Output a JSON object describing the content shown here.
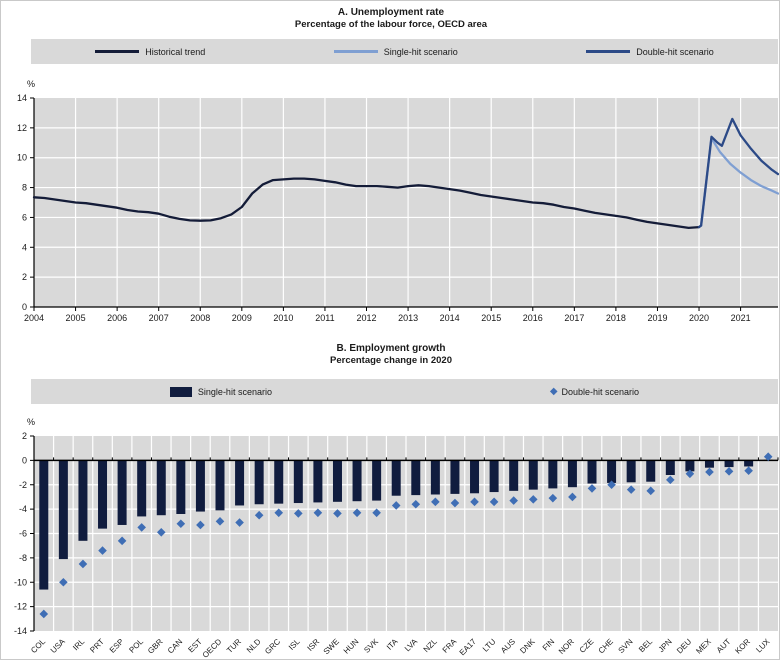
{
  "chart_data": [
    {
      "type": "line",
      "title": "A. Unemployment rate",
      "subtitle": "Percentage of the labour force, OECD area",
      "ylabel": "%",
      "ylim": [
        0,
        14
      ],
      "yticks": [
        0,
        2,
        4,
        6,
        8,
        10,
        12,
        14
      ],
      "xlim": [
        2004,
        2021.9
      ],
      "xticks": [
        2004,
        2005,
        2006,
        2007,
        2008,
        2009,
        2010,
        2011,
        2012,
        2013,
        2014,
        2015,
        2016,
        2017,
        2018,
        2019,
        2020,
        2021
      ],
      "grid": true,
      "plot_bg": "#d9d9d9",
      "grid_color": "#ffffff",
      "legend_position": "top",
      "series": [
        {
          "name": "Historical trend",
          "color": "#141c38",
          "z": 1,
          "points": [
            [
              2004,
              7.35
            ],
            [
              2004.25,
              7.3
            ],
            [
              2004.5,
              7.2
            ],
            [
              2004.75,
              7.1
            ],
            [
              2005,
              7.0
            ],
            [
              2005.25,
              6.95
            ],
            [
              2005.5,
              6.85
            ],
            [
              2005.75,
              6.75
            ],
            [
              2006,
              6.65
            ],
            [
              2006.25,
              6.5
            ],
            [
              2006.5,
              6.4
            ],
            [
              2006.75,
              6.35
            ],
            [
              2007,
              6.25
            ],
            [
              2007.25,
              6.05
            ],
            [
              2007.5,
              5.9
            ],
            [
              2007.75,
              5.8
            ],
            [
              2008,
              5.78
            ],
            [
              2008.25,
              5.8
            ],
            [
              2008.5,
              5.95
            ],
            [
              2008.75,
              6.2
            ],
            [
              2009,
              6.7
            ],
            [
              2009.25,
              7.6
            ],
            [
              2009.5,
              8.2
            ],
            [
              2009.75,
              8.5
            ],
            [
              2010,
              8.55
            ],
            [
              2010.25,
              8.6
            ],
            [
              2010.5,
              8.6
            ],
            [
              2010.75,
              8.55
            ],
            [
              2011,
              8.45
            ],
            [
              2011.25,
              8.35
            ],
            [
              2011.5,
              8.2
            ],
            [
              2011.75,
              8.1
            ],
            [
              2012,
              8.1
            ],
            [
              2012.25,
              8.1
            ],
            [
              2012.5,
              8.05
            ],
            [
              2012.75,
              8.0
            ],
            [
              2013,
              8.1
            ],
            [
              2013.25,
              8.15
            ],
            [
              2013.5,
              8.1
            ],
            [
              2013.75,
              8.0
            ],
            [
              2014,
              7.9
            ],
            [
              2014.25,
              7.8
            ],
            [
              2014.5,
              7.65
            ],
            [
              2014.75,
              7.5
            ],
            [
              2015,
              7.4
            ],
            [
              2015.25,
              7.3
            ],
            [
              2015.5,
              7.2
            ],
            [
              2015.75,
              7.1
            ],
            [
              2016,
              7.0
            ],
            [
              2016.25,
              6.95
            ],
            [
              2016.5,
              6.85
            ],
            [
              2016.75,
              6.7
            ],
            [
              2017,
              6.6
            ],
            [
              2017.25,
              6.45
            ],
            [
              2017.5,
              6.3
            ],
            [
              2017.75,
              6.2
            ],
            [
              2018,
              6.1
            ],
            [
              2018.25,
              6.0
            ],
            [
              2018.5,
              5.85
            ],
            [
              2018.75,
              5.7
            ],
            [
              2019,
              5.6
            ],
            [
              2019.25,
              5.5
            ],
            [
              2019.5,
              5.4
            ],
            [
              2019.75,
              5.3
            ],
            [
              2020,
              5.35
            ]
          ]
        },
        {
          "name": "Single-hit scenario",
          "color": "#7f9fd2",
          "z": 0,
          "points": [
            [
              2020,
              5.35
            ],
            [
              2020.05,
              5.45
            ],
            [
              2020.3,
              11.3
            ],
            [
              2020.5,
              10.4
            ],
            [
              2020.75,
              9.6
            ],
            [
              2021,
              9.0
            ],
            [
              2021.25,
              8.5
            ],
            [
              2021.5,
              8.1
            ],
            [
              2021.75,
              7.8
            ],
            [
              2021.9,
              7.6
            ]
          ]
        },
        {
          "name": "Double-hit scenario",
          "color": "#2c4a87",
          "z": 2,
          "points": [
            [
              2020,
              5.35
            ],
            [
              2020.05,
              5.45
            ],
            [
              2020.3,
              11.4
            ],
            [
              2020.45,
              11.0
            ],
            [
              2020.55,
              10.8
            ],
            [
              2020.8,
              12.6
            ],
            [
              2021,
              11.5
            ],
            [
              2021.25,
              10.6
            ],
            [
              2021.5,
              9.8
            ],
            [
              2021.75,
              9.2
            ],
            [
              2021.9,
              8.9
            ]
          ]
        }
      ]
    },
    {
      "type": "bar",
      "title": "B. Employment growth",
      "subtitle": "Percentage change in 2020",
      "ylabel": "%",
      "ylim": [
        -14,
        2
      ],
      "yticks": [
        2,
        0,
        -2,
        -4,
        -6,
        -8,
        -10,
        -12,
        -14
      ],
      "grid": true,
      "plot_bg": "#d9d9d9",
      "grid_color": "#ffffff",
      "legend_position": "top",
      "categories": [
        "COL",
        "USA",
        "IRL",
        "PRT",
        "ESP",
        "POL",
        "GBR",
        "CAN",
        "EST",
        "OECD",
        "TUR",
        "NLD",
        "GRC",
        "ISL",
        "ISR",
        "SWE",
        "HUN",
        "SVK",
        "ITA",
        "LVA",
        "NZL",
        "FRA",
        "EA17",
        "LTU",
        "AUS",
        "DNK",
        "FIN",
        "NOR",
        "CZE",
        "CHE",
        "SVN",
        "BEL",
        "JPN",
        "DEU",
        "MEX",
        "AUT",
        "KOR",
        "LUX"
      ],
      "series": [
        {
          "name": "Single-hit scenario",
          "mark": "bar",
          "color": "#101c3e",
          "values": [
            -10.6,
            -8.1,
            -6.6,
            -5.6,
            -5.3,
            -4.6,
            -4.5,
            -4.4,
            -4.2,
            -4.1,
            -3.7,
            -3.6,
            -3.55,
            -3.5,
            -3.45,
            -3.4,
            -3.35,
            -3.3,
            -2.9,
            -2.85,
            -2.8,
            -2.75,
            -2.7,
            -2.6,
            -2.5,
            -2.4,
            -2.3,
            -2.2,
            -1.9,
            -1.85,
            -1.8,
            -1.75,
            -1.2,
            -0.9,
            -0.6,
            -0.55,
            -0.5,
            0.05
          ]
        },
        {
          "name": "Double-hit scenario",
          "mark": "diamond",
          "color": "#3f6eb5",
          "values": [
            -12.6,
            -10.0,
            -8.5,
            -7.4,
            -6.6,
            -5.5,
            -5.9,
            -5.2,
            -5.3,
            -5.0,
            -5.1,
            -4.5,
            -4.3,
            -4.35,
            -4.3,
            -4.35,
            -4.3,
            -4.3,
            -3.7,
            -3.6,
            -3.4,
            -3.5,
            -3.4,
            -3.4,
            -3.3,
            -3.2,
            -3.1,
            -3.0,
            -2.3,
            -2.0,
            -2.4,
            -2.5,
            -1.6,
            -1.1,
            -0.95,
            -0.9,
            -0.85,
            0.3
          ]
        }
      ]
    }
  ]
}
